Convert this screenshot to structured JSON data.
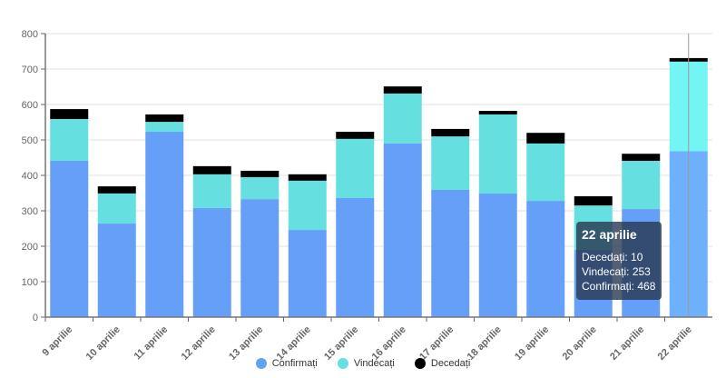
{
  "chart_data": {
    "type": "bar",
    "stacked": true,
    "categories": [
      "9 aprilie",
      "10 aprilie",
      "11 aprilie",
      "12 aprilie",
      "13 aprilie",
      "14 aprilie",
      "15 aprilie",
      "16 aprilie",
      "17 aprilie",
      "18 aprilie",
      "19 aprilie",
      "20 aprilie",
      "21 aprilie",
      "22 aprilie"
    ],
    "series": [
      {
        "name": "Confirmați",
        "color": "#659ff7",
        "values": [
          441,
          264,
          523,
          308,
          333,
          246,
          336,
          490,
          359,
          349,
          328,
          190,
          305,
          468
        ]
      },
      {
        "name": "Vindecați",
        "color": "#65dfe0",
        "values": [
          118,
          85,
          28,
          95,
          62,
          139,
          167,
          141,
          151,
          223,
          162,
          125,
          136,
          253
        ]
      },
      {
        "name": "Decedați",
        "color": "#000000",
        "values": [
          28,
          20,
          21,
          23,
          18,
          18,
          20,
          20,
          21,
          10,
          30,
          26,
          20,
          10
        ]
      }
    ],
    "ylim": [
      0,
      800
    ],
    "yticks": [
      "0",
      "100",
      "200",
      "300",
      "400",
      "500",
      "600",
      "700",
      "800"
    ],
    "grid": true,
    "legend_position": "bottom",
    "highlighted_category": "22 aprilie"
  },
  "tooltip": {
    "title": "22 aprilie",
    "lines": [
      "Decedați: 10",
      "Vindecați: 253",
      "Confirmați: 468"
    ]
  }
}
